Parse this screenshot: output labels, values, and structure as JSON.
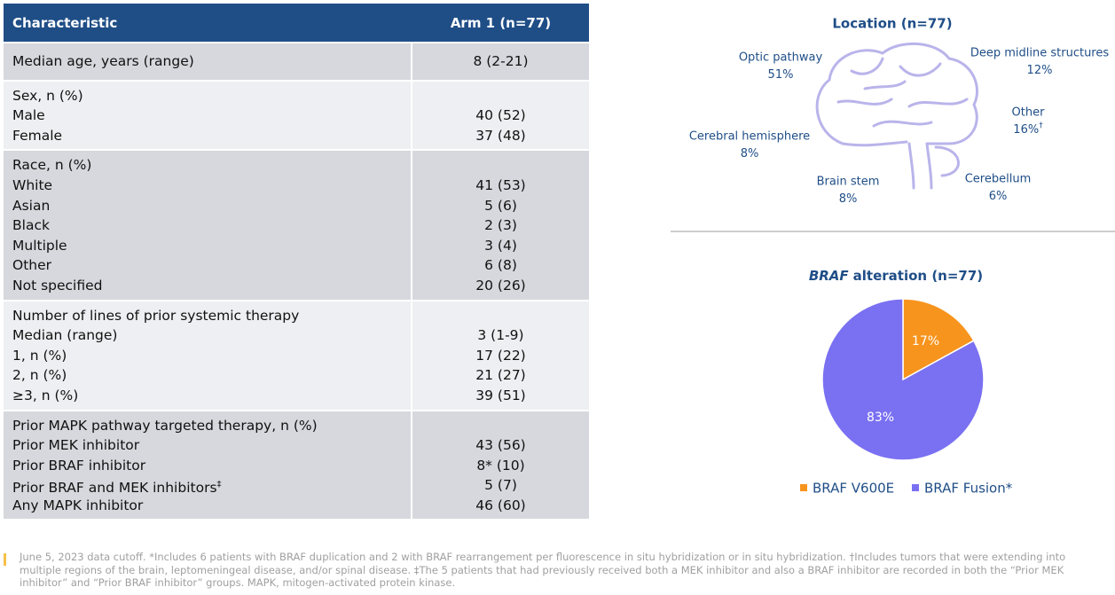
{
  "table": {
    "header": [
      "Characteristic",
      "Arm 1 (n=77)"
    ],
    "groups": [
      {
        "rows": [
          {
            "label": "Median age, years (range)",
            "value": "8 (2-21)"
          }
        ]
      },
      {
        "title": "Sex, n (%)",
        "rows": [
          {
            "label": "Male",
            "value": "40 (52)"
          },
          {
            "label": "Female",
            "value": "37 (48)"
          }
        ]
      },
      {
        "title": "Race, n (%)",
        "rows": [
          {
            "label": "White",
            "value": "41 (53)"
          },
          {
            "label": "Asian",
            "value": "5 (6)"
          },
          {
            "label": "Black",
            "value": "2 (3)"
          },
          {
            "label": "Multiple",
            "value": "3 (4)"
          },
          {
            "label": "Other",
            "value": "6 (8)"
          },
          {
            "label": "Not specified",
            "value": "20 (26)"
          }
        ]
      },
      {
        "title": "Number of lines of prior systemic therapy",
        "rows": [
          {
            "label": "Median (range)",
            "value": "3 (1-9)"
          },
          {
            "label": "1, n (%)",
            "value": "17 (22)"
          },
          {
            "label": "2, n (%)",
            "value": "21 (27)"
          },
          {
            "label": "≥3, n (%)",
            "value": "39 (51)"
          }
        ]
      },
      {
        "title": "Prior MAPK pathway targeted therapy, n (%)",
        "rows": [
          {
            "label": "Prior MEK inhibitor",
            "value": "43 (56)"
          },
          {
            "label": "Prior BRAF inhibitor",
            "value": "8* (10)"
          },
          {
            "label": "Prior BRAF and MEK inhibitors",
            "sup": "‡",
            "value": "5 (7)"
          },
          {
            "label": "Any MAPK inhibitor",
            "value": "46 (60)"
          }
        ]
      }
    ]
  },
  "location": {
    "title": "Location (n=77)",
    "items": [
      {
        "label": "Optic pathway",
        "value": "51%"
      },
      {
        "label": "Deep midline structures",
        "value": "12%"
      },
      {
        "label": "Other",
        "value": "16%",
        "sup": "†"
      },
      {
        "label": "Cerebral hemisphere",
        "value": "8%"
      },
      {
        "label": "Brain stem",
        "value": "8%"
      },
      {
        "label": "Cerebellum",
        "value": "6%"
      }
    ]
  },
  "chart_data": {
    "type": "pie",
    "title_italic": "BRAF",
    "title": "alteration (n=77)",
    "categories": [
      "BRAF V600E",
      "BRAF Fusion*"
    ],
    "values": [
      17,
      83
    ],
    "value_labels": [
      "17%",
      "83%"
    ],
    "colors": [
      "#f7941d",
      "#7a70f2"
    ]
  },
  "footnote": "June 5, 2023 data cutoff. *Includes 6 patients with BRAF duplication and 2 with BRAF rearrangement per fluorescence in situ hybridization or in situ hybridization. †Includes tumors that were extending into multiple regions of the brain, leptomeningeal disease, and/or spinal disease. ‡The 5 patients that had previously received both a MEK inhibitor and also a BRAF inhibitor are recorded in both the “Prior MEK inhibitor” and “Prior BRAF inhibitor” groups. MAPK, mitogen-activated protein kinase."
}
